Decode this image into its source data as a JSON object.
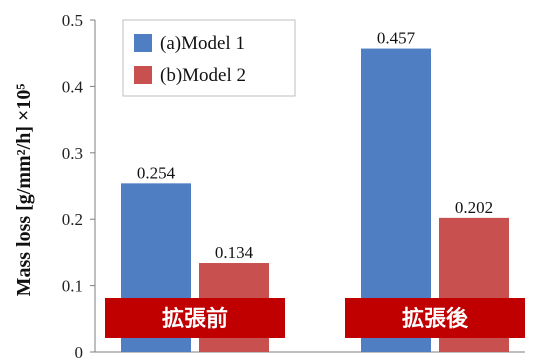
{
  "chart_data": {
    "type": "bar",
    "categories": [
      "拡張前",
      "拡張後"
    ],
    "series": [
      {
        "name": "(a)Model 1",
        "values": [
          0.254,
          0.457
        ],
        "color": "#4f7fc2",
        "labels": [
          "0.254",
          "0.457"
        ]
      },
      {
        "name": "(b)Model 2",
        "values": [
          0.134,
          0.202
        ],
        "color": "#c8514f",
        "labels": [
          "0.134",
          "0.202"
        ]
      }
    ],
    "ylabel": "Mass loss [g/mm²/h] ×10⁵",
    "ylim": [
      0,
      0.5
    ],
    "yticks": [
      "0",
      "0.1",
      "0.2",
      "0.3",
      "0.4",
      "0.5"
    ],
    "legend_position": "top-left",
    "banner_color": "#c00000",
    "grid": false
  }
}
